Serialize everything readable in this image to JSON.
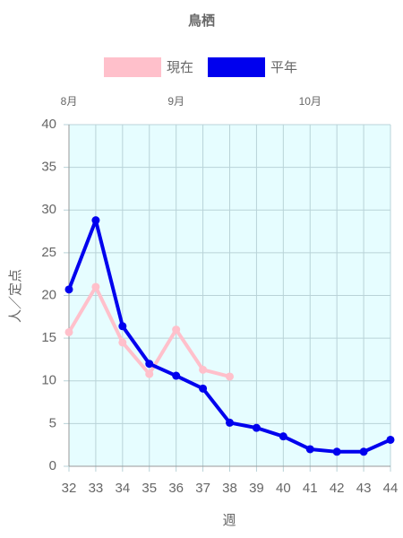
{
  "chart_data": {
    "type": "line",
    "title": "鳥栖",
    "x": [
      32,
      33,
      34,
      35,
      36,
      37,
      38,
      39,
      40,
      41,
      42,
      43,
      44
    ],
    "series": [
      {
        "name": "現在",
        "color": "#ffc0cb",
        "values": [
          15.7,
          21.0,
          14.5,
          10.8,
          16.0,
          11.3,
          10.5,
          null,
          null,
          null,
          null,
          null,
          null
        ]
      },
      {
        "name": "平年",
        "color": "#0000ee",
        "values": [
          20.7,
          28.8,
          16.4,
          12.0,
          10.6,
          9.1,
          5.1,
          4.5,
          3.5,
          2.0,
          1.7,
          1.7,
          3.1
        ]
      }
    ],
    "xlim": [
      32,
      44
    ],
    "xticks": [
      32,
      33,
      34,
      35,
      36,
      37,
      38,
      39,
      40,
      41,
      42,
      43,
      44
    ],
    "ylim": [
      0,
      40
    ],
    "yticks": [
      0,
      5,
      10,
      15,
      20,
      25,
      30,
      35,
      40
    ],
    "month_labels": [
      {
        "value": 32,
        "label": "8月"
      },
      {
        "value": 36,
        "label": "9月"
      },
      {
        "value": 41,
        "label": "10月"
      }
    ],
    "xlabel": "週",
    "ylabel": "人／定点",
    "grid": true,
    "legend": "top",
    "plot_background": "#e6fdff"
  }
}
